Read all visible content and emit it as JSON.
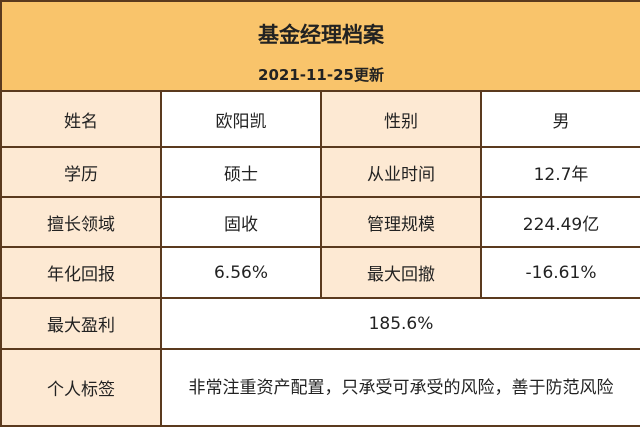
{
  "header": {
    "title": "基金经理档案",
    "date": "2021-11-25更新"
  },
  "table": {
    "rows": [
      [
        "姓名",
        "欧阳凯",
        "性别",
        "男"
      ],
      [
        "学历",
        "硕士",
        "从业时间",
        "12.7年"
      ],
      [
        "擅长领域",
        "固收",
        "管理规模",
        "224.49亿"
      ],
      [
        "年化回报",
        "6.56%",
        "最大回撤",
        "-16.61%"
      ],
      [
        "最大盈利",
        "185.6%"
      ],
      [
        "个人标签",
        "非常注重资产配置，只承受可承受的风险，善于防范风险"
      ]
    ]
  }
}
